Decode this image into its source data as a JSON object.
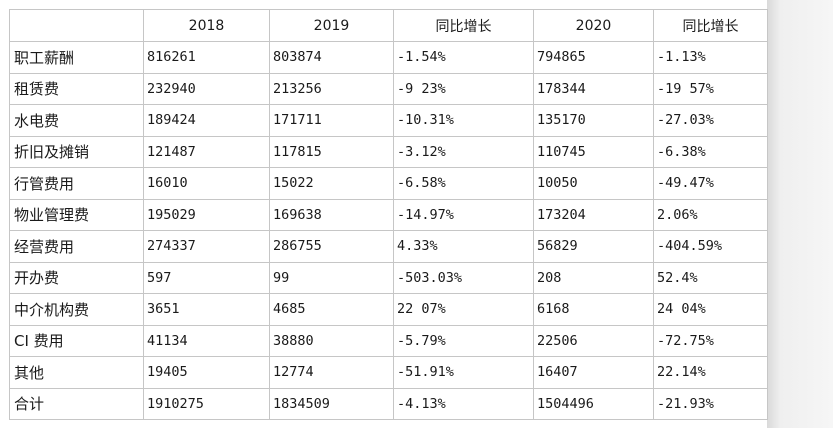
{
  "header": [
    "",
    "2018",
    "2019",
    "同比增长",
    "2020",
    "同比增长"
  ],
  "rows": [
    {
      "label": "职工薪酬",
      "v2018": "816261",
      "v2019": "803874",
      "g2019": "-1.54%",
      "v2020": "794865",
      "g2020": "-1.13%"
    },
    {
      "label": "租赁费",
      "v2018": "232940",
      "v2019": "213256",
      "g2019": "-9 23%",
      "v2020": "178344",
      "g2020": "-19 57%"
    },
    {
      "label": "水电费",
      "v2018": "189424",
      "v2019": "171711",
      "g2019": "-10.31%",
      "v2020": "135170",
      "g2020": "-27.03%"
    },
    {
      "label": "折旧及摊销",
      "v2018": "121487",
      "v2019": "117815",
      "g2019": "-3.12%",
      "v2020": "110745",
      "g2020": "-6.38%"
    },
    {
      "label": "行管费用",
      "v2018": "16010",
      "v2019": "15022",
      "g2019": "-6.58%",
      "v2020": "10050",
      "g2020": "-49.47%"
    },
    {
      "label": "物业管理费",
      "v2018": "195029",
      "v2019": "169638",
      "g2019": "-14.97%",
      "v2020": "173204",
      "g2020": "2.06%"
    },
    {
      "label": "经营费用",
      "v2018": "274337",
      "v2019": "286755",
      "g2019": "4.33%",
      "v2020": "56829",
      "g2020": "-404.59%"
    },
    {
      "label": "开办费",
      "v2018": "597",
      "v2019": "99",
      "g2019": "-503.03%",
      "v2020": "208",
      "g2020": "52.4%"
    },
    {
      "label": "中介机构费",
      "v2018": "3651",
      "v2019": "4685",
      "g2019": "22 07%",
      "v2020": "6168",
      "g2020": "24 04%"
    },
    {
      "label": "CI 费用",
      "v2018": "41134",
      "v2019": "38880",
      "g2019": "-5.79%",
      "v2020": "22506",
      "g2020": "-72.75%"
    },
    {
      "label": "其他",
      "v2018": "19405",
      "v2019": "12774",
      "g2019": "-51.91%",
      "v2020": "16407",
      "g2020": "22.14%"
    },
    {
      "label": "合计",
      "v2018": "1910275",
      "v2019": "1834509",
      "g2019": "-4.13%",
      "v2020": "1504496",
      "g2020": "-21.93%"
    }
  ]
}
